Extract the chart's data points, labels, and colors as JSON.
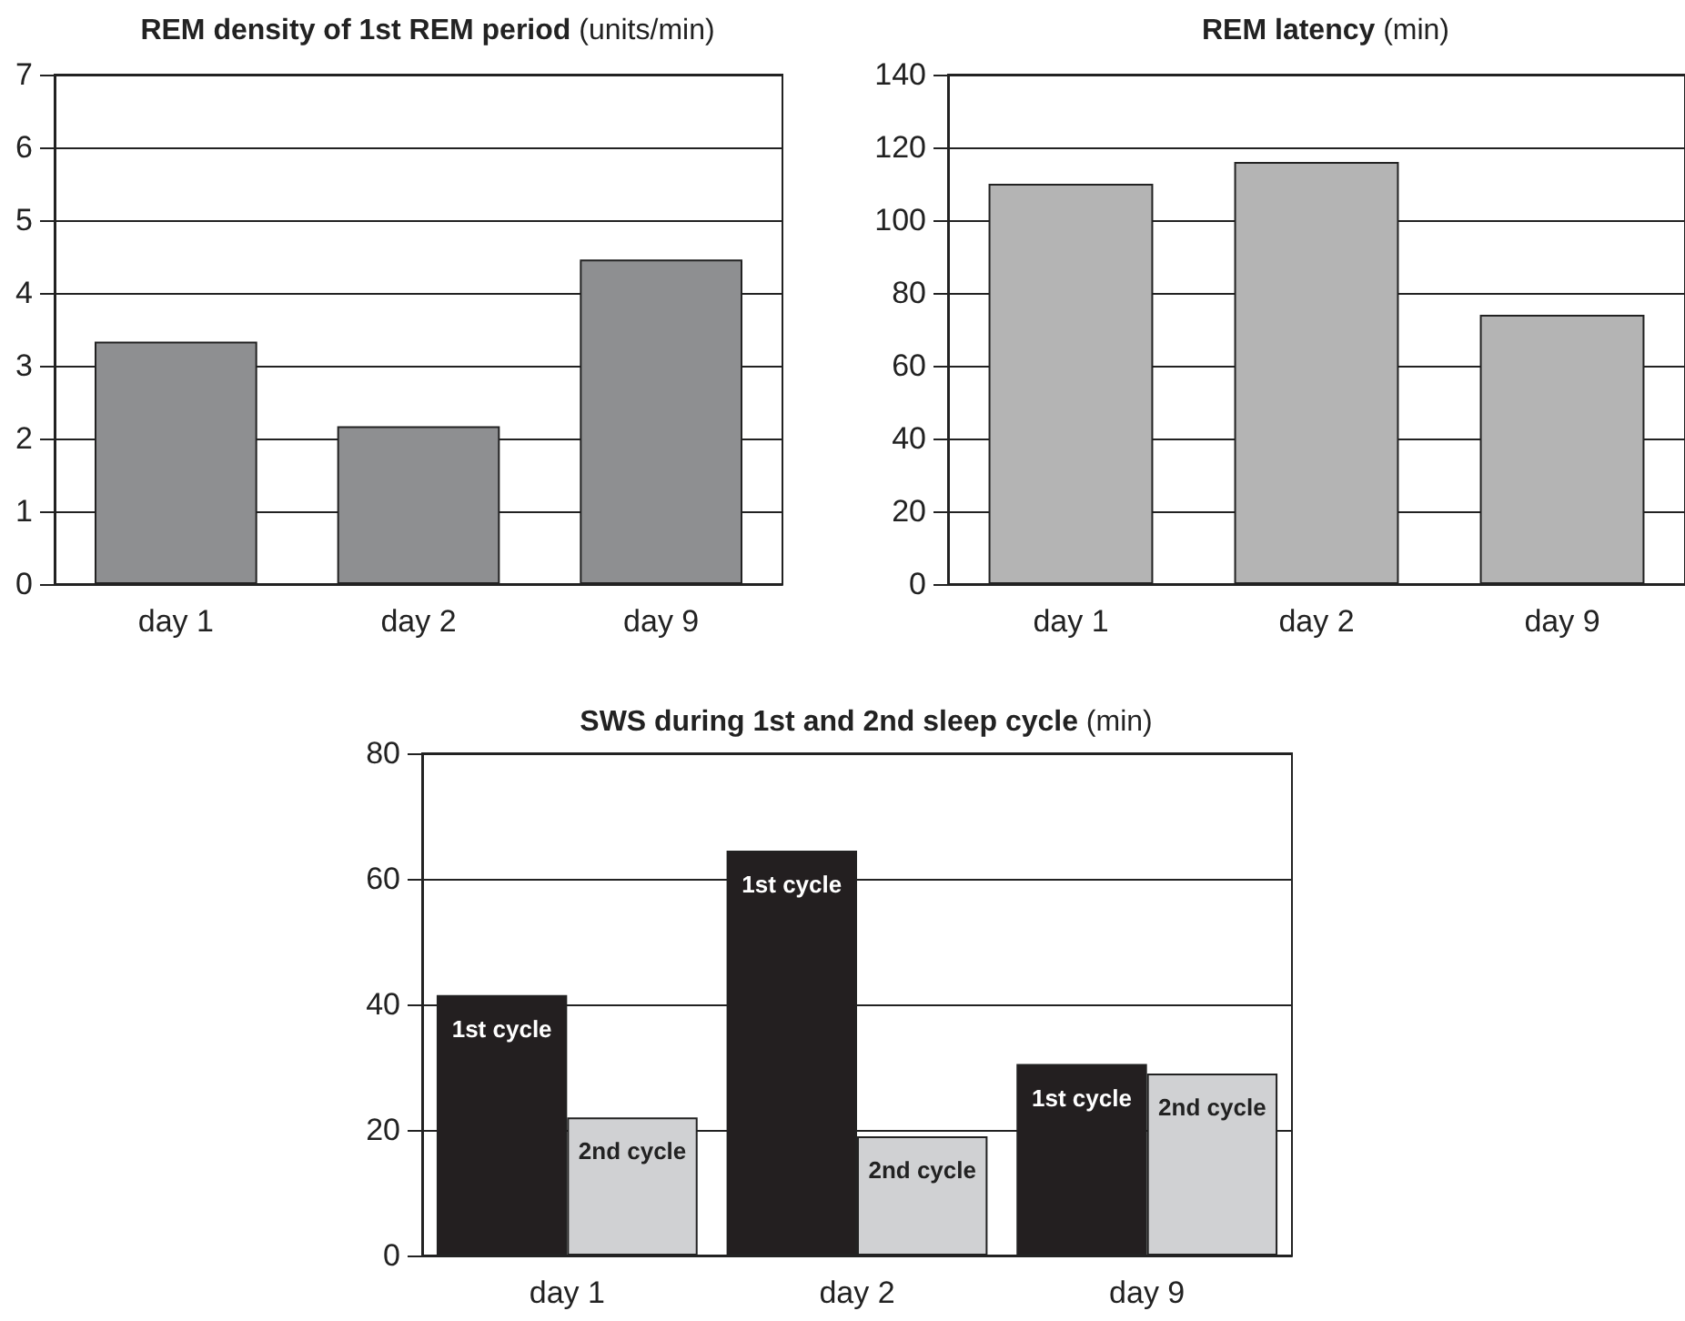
{
  "chart_data": [
    {
      "type": "bar",
      "title": "REM density of 1st REM period (units/min)",
      "categories": [
        "day 1",
        "day 2",
        "day 9"
      ],
      "values": [
        3.33,
        2.17,
        4.46
      ],
      "color": "#8e8f91",
      "ylim": [
        0,
        7
      ],
      "yticks": [
        0,
        1,
        2,
        3,
        4,
        5,
        6,
        7
      ],
      "grid": "y"
    },
    {
      "type": "bar",
      "title": "REM latency (min)",
      "categories": [
        "day 1",
        "day 2",
        "day 9"
      ],
      "values": [
        110,
        116,
        74
      ],
      "color": "#b4b4b4",
      "ylim": [
        0,
        140
      ],
      "yticks": [
        0,
        20,
        40,
        60,
        80,
        100,
        120,
        140
      ],
      "grid": "y"
    },
    {
      "type": "bar",
      "title": "SWS during 1st and 2nd sleep cycle (min)",
      "categories": [
        "day 1",
        "day 2",
        "day 9"
      ],
      "series": [
        {
          "name": "1st cycle",
          "color": "#231f20",
          "values": [
            41.5,
            64.5,
            30.5
          ]
        },
        {
          "name": "2nd cycle",
          "color": "#d0d1d3",
          "values": [
            22,
            19,
            29
          ]
        }
      ],
      "ylim": [
        0,
        80
      ],
      "yticks": [
        0,
        20,
        40,
        60,
        80
      ],
      "grid": "y"
    }
  ]
}
